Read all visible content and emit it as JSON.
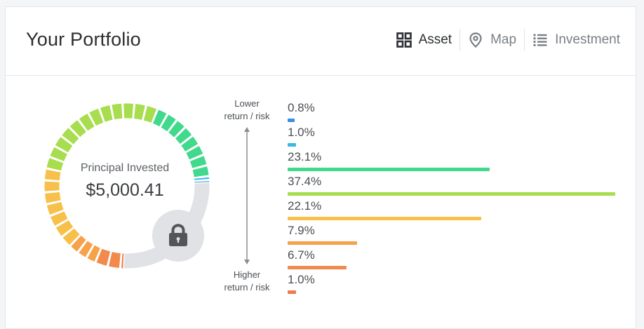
{
  "header": {
    "title": "Your Portfolio",
    "tabs": [
      {
        "label": "Asset",
        "icon": "grid-icon",
        "active": true
      },
      {
        "label": "Map",
        "icon": "map-pin-icon",
        "active": false
      },
      {
        "label": "Investment",
        "icon": "list-icon",
        "active": false
      }
    ]
  },
  "summary": {
    "principal_label": "Principal Invested",
    "principal_value": "$5,000.41",
    "lock_icon": "lock-icon"
  },
  "risk_scale": {
    "top_label": "Lower\nreturn / risk",
    "bottom_label": "Higher\nreturn / risk"
  },
  "allocation": [
    {
      "pct": "0.8%",
      "value": 0.8,
      "color": "#3a8fe0"
    },
    {
      "pct": "1.0%",
      "value": 1.0,
      "color": "#3ab8e6"
    },
    {
      "pct": "23.1%",
      "value": 23.1,
      "color": "#41d98c"
    },
    {
      "pct": "37.4%",
      "value": 37.4,
      "color": "#a7dd4e"
    },
    {
      "pct": "22.1%",
      "value": 22.1,
      "color": "#f7c04a"
    },
    {
      "pct": "7.9%",
      "value": 7.9,
      "color": "#f5a24b"
    },
    {
      "pct": "6.7%",
      "value": 6.7,
      "color": "#f28a4e"
    },
    {
      "pct": "1.0%",
      "value": 1.0,
      "color": "#ee7b4a"
    }
  ],
  "donut": {
    "track_color": "#e0e2e5"
  }
}
